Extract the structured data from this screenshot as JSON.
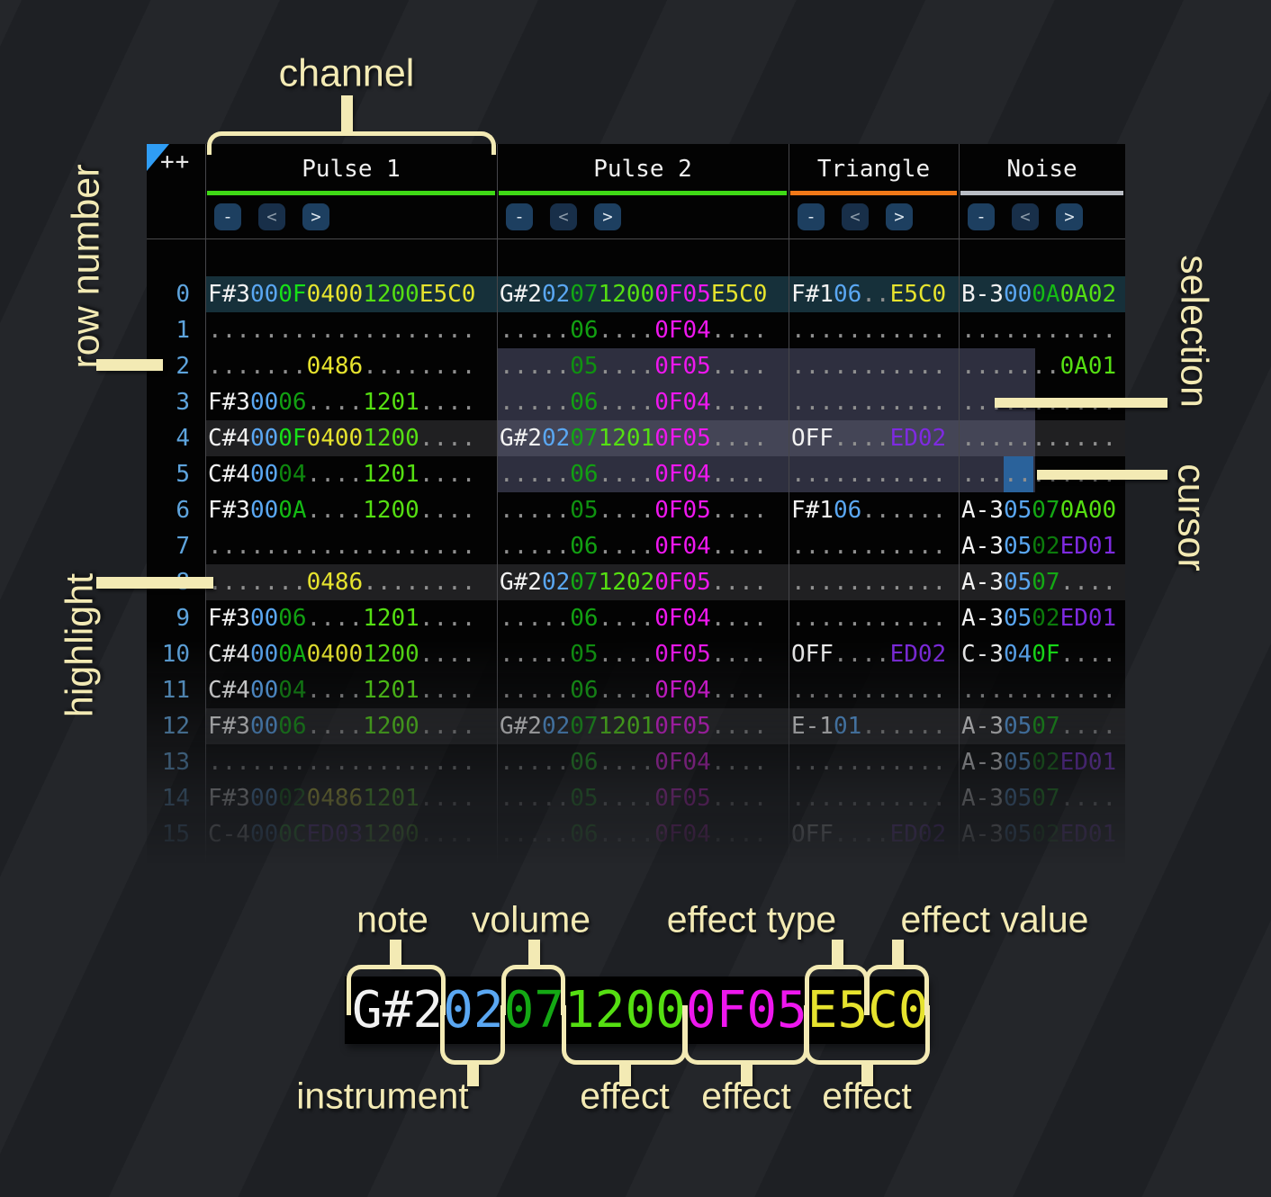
{
  "corner": "++",
  "annotations": {
    "channel": "channel",
    "row_number": "row number",
    "highlight": "highlight",
    "selection": "selection",
    "cursor": "cursor"
  },
  "channel_buttons": {
    "collapse": "-",
    "prev": "<",
    "next": ">"
  },
  "channels": [
    {
      "name": "Pulse 1",
      "underline": "#3fd916"
    },
    {
      "name": "Pulse 2",
      "underline": "#3fd916"
    },
    {
      "name": "Triangle",
      "underline": "#f07818"
    },
    {
      "name": "Noise",
      "underline": "#b9bdc4"
    }
  ],
  "palette": {
    "white": "#f2f2f2",
    "ins": "#5aa7f2",
    "dot": "#8f8f8f",
    "fx_yellow": "#e6e32e",
    "fx_lime": "#55df12",
    "fx_magenta": "#ee17ee",
    "fx_purple": "#7e2ae0",
    "v0F": "#17e017",
    "v0C": "#14cf14",
    "v0A": "#14ba14",
    "v07": "#14a814",
    "v06": "#12a012",
    "v05": "#0f9210",
    "v04": "#0e870e",
    "v02": "#0c7a0c"
  },
  "rows": [
    {
      "num": "0",
      "bg": "first",
      "cells": [
        [
          [
            "F#3",
            "white"
          ],
          [
            "00",
            "ins"
          ],
          [
            "0F",
            "v0F"
          ],
          [
            "0400",
            "fx_yellow"
          ],
          [
            "1200",
            "fx_lime"
          ],
          [
            "E5C0",
            "fx_yellow"
          ]
        ],
        [
          [
            "G#2",
            "white"
          ],
          [
            "02",
            "ins"
          ],
          [
            "07",
            "v07"
          ],
          [
            "1200",
            "fx_lime"
          ],
          [
            "0F05",
            "fx_magenta"
          ],
          [
            "E5C0",
            "fx_yellow"
          ]
        ],
        [
          [
            "F#1",
            "white"
          ],
          [
            "06",
            "ins"
          ],
          [
            "..",
            "dot"
          ],
          [
            "E5C0",
            "fx_yellow"
          ]
        ],
        [
          [
            "B-3",
            "white"
          ],
          [
            "00",
            "ins"
          ],
          [
            "0A",
            "v0A"
          ],
          [
            "0A02",
            "fx_lime"
          ]
        ]
      ]
    },
    {
      "num": "1",
      "bg": null,
      "cells": [
        [
          [
            "...................",
            "dot"
          ]
        ],
        [
          [
            ".....",
            "dot"
          ],
          [
            "06",
            "v06"
          ],
          [
            "....",
            "dot"
          ],
          [
            "0F04",
            "fx_magenta"
          ],
          [
            "....",
            "dot"
          ]
        ],
        [
          [
            "...........",
            "dot"
          ]
        ],
        [
          [
            "...........",
            "dot"
          ]
        ]
      ]
    },
    {
      "num": "2",
      "bg": null,
      "cells": [
        [
          [
            ".......",
            "dot"
          ],
          [
            "0486",
            "fx_yellow"
          ],
          [
            "........",
            "dot"
          ]
        ],
        [
          [
            ".....",
            "dot"
          ],
          [
            "05",
            "v05"
          ],
          [
            "....",
            "dot"
          ],
          [
            "0F05",
            "fx_magenta"
          ],
          [
            "....",
            "dot"
          ]
        ],
        [
          [
            "...........",
            "dot"
          ]
        ],
        [
          [
            ".......",
            "dot"
          ],
          [
            "0A01",
            "fx_lime"
          ]
        ]
      ]
    },
    {
      "num": "3",
      "bg": null,
      "cells": [
        [
          [
            "F#3",
            "white"
          ],
          [
            "00",
            "ins"
          ],
          [
            "06",
            "v06"
          ],
          [
            "....",
            "dot"
          ],
          [
            "1201",
            "fx_lime"
          ],
          [
            "....",
            "dot"
          ]
        ],
        [
          [
            ".....",
            "dot"
          ],
          [
            "06",
            "v06"
          ],
          [
            "....",
            "dot"
          ],
          [
            "0F04",
            "fx_magenta"
          ],
          [
            "....",
            "dot"
          ]
        ],
        [
          [
            "...........",
            "dot"
          ]
        ],
        [
          [
            "...........",
            "dot"
          ]
        ]
      ]
    },
    {
      "num": "4",
      "bg": "quad",
      "cells": [
        [
          [
            "C#4",
            "white"
          ],
          [
            "00",
            "ins"
          ],
          [
            "0F",
            "v0F"
          ],
          [
            "0400",
            "fx_yellow"
          ],
          [
            "1200",
            "fx_lime"
          ],
          [
            "....",
            "dot"
          ]
        ],
        [
          [
            "G#2",
            "white"
          ],
          [
            "02",
            "ins"
          ],
          [
            "07",
            "v07"
          ],
          [
            "1201",
            "fx_lime"
          ],
          [
            "0F05",
            "fx_magenta"
          ],
          [
            "....",
            "dot"
          ]
        ],
        [
          [
            "OFF",
            "white"
          ],
          [
            "....",
            "dot"
          ],
          [
            "ED02",
            "fx_purple"
          ]
        ],
        [
          [
            "...........",
            "dot"
          ]
        ]
      ]
    },
    {
      "num": "5",
      "bg": null,
      "cells": [
        [
          [
            "C#4",
            "white"
          ],
          [
            "00",
            "ins"
          ],
          [
            "04",
            "v04"
          ],
          [
            "....",
            "dot"
          ],
          [
            "1201",
            "fx_lime"
          ],
          [
            "....",
            "dot"
          ]
        ],
        [
          [
            ".....",
            "dot"
          ],
          [
            "06",
            "v06"
          ],
          [
            "....",
            "dot"
          ],
          [
            "0F04",
            "fx_magenta"
          ],
          [
            "....",
            "dot"
          ]
        ],
        [
          [
            "...........",
            "dot"
          ]
        ],
        [
          [
            "...........",
            "dot"
          ]
        ]
      ]
    },
    {
      "num": "6",
      "bg": null,
      "cells": [
        [
          [
            "F#3",
            "white"
          ],
          [
            "00",
            "ins"
          ],
          [
            "0A",
            "v0A"
          ],
          [
            "....",
            "dot"
          ],
          [
            "1200",
            "fx_lime"
          ],
          [
            "....",
            "dot"
          ]
        ],
        [
          [
            ".....",
            "dot"
          ],
          [
            "05",
            "v05"
          ],
          [
            "....",
            "dot"
          ],
          [
            "0F05",
            "fx_magenta"
          ],
          [
            "....",
            "dot"
          ]
        ],
        [
          [
            "F#1",
            "white"
          ],
          [
            "06",
            "ins"
          ],
          [
            "......",
            "dot"
          ]
        ],
        [
          [
            "A-3",
            "white"
          ],
          [
            "05",
            "ins"
          ],
          [
            "07",
            "v07"
          ],
          [
            "0A00",
            "fx_lime"
          ]
        ]
      ]
    },
    {
      "num": "7",
      "bg": null,
      "cells": [
        [
          [
            "...................",
            "dot"
          ]
        ],
        [
          [
            ".....",
            "dot"
          ],
          [
            "06",
            "v06"
          ],
          [
            "....",
            "dot"
          ],
          [
            "0F04",
            "fx_magenta"
          ],
          [
            "....",
            "dot"
          ]
        ],
        [
          [
            "...........",
            "dot"
          ]
        ],
        [
          [
            "A-3",
            "white"
          ],
          [
            "05",
            "ins"
          ],
          [
            "02",
            "v02"
          ],
          [
            "ED01",
            "fx_purple"
          ]
        ]
      ]
    },
    {
      "num": "8",
      "bg": "quad",
      "cells": [
        [
          [
            ".......",
            "dot"
          ],
          [
            "0486",
            "fx_yellow"
          ],
          [
            "........",
            "dot"
          ]
        ],
        [
          [
            "G#2",
            "white"
          ],
          [
            "02",
            "ins"
          ],
          [
            "07",
            "v07"
          ],
          [
            "1202",
            "fx_lime"
          ],
          [
            "0F05",
            "fx_magenta"
          ],
          [
            "....",
            "dot"
          ]
        ],
        [
          [
            "...........",
            "dot"
          ]
        ],
        [
          [
            "A-3",
            "white"
          ],
          [
            "05",
            "ins"
          ],
          [
            "07",
            "v07"
          ],
          [
            "....",
            "dot"
          ]
        ]
      ]
    },
    {
      "num": "9",
      "bg": null,
      "cells": [
        [
          [
            "F#3",
            "white"
          ],
          [
            "00",
            "ins"
          ],
          [
            "06",
            "v06"
          ],
          [
            "....",
            "dot"
          ],
          [
            "1201",
            "fx_lime"
          ],
          [
            "....",
            "dot"
          ]
        ],
        [
          [
            ".....",
            "dot"
          ],
          [
            "06",
            "v06"
          ],
          [
            "....",
            "dot"
          ],
          [
            "0F04",
            "fx_magenta"
          ],
          [
            "....",
            "dot"
          ]
        ],
        [
          [
            "...........",
            "dot"
          ]
        ],
        [
          [
            "A-3",
            "white"
          ],
          [
            "05",
            "ins"
          ],
          [
            "02",
            "v02"
          ],
          [
            "ED01",
            "fx_purple"
          ]
        ]
      ]
    },
    {
      "num": "10",
      "bg": null,
      "cells": [
        [
          [
            "C#4",
            "white"
          ],
          [
            "00",
            "ins"
          ],
          [
            "0A",
            "v0A"
          ],
          [
            "0400",
            "fx_yellow"
          ],
          [
            "1200",
            "fx_lime"
          ],
          [
            "....",
            "dot"
          ]
        ],
        [
          [
            ".....",
            "dot"
          ],
          [
            "05",
            "v05"
          ],
          [
            "....",
            "dot"
          ],
          [
            "0F05",
            "fx_magenta"
          ],
          [
            "....",
            "dot"
          ]
        ],
        [
          [
            "OFF",
            "white"
          ],
          [
            "....",
            "dot"
          ],
          [
            "ED02",
            "fx_purple"
          ]
        ],
        [
          [
            "C-3",
            "white"
          ],
          [
            "04",
            "ins"
          ],
          [
            "0F",
            "v0F"
          ],
          [
            "....",
            "dot"
          ]
        ]
      ]
    },
    {
      "num": "11",
      "bg": null,
      "cells": [
        [
          [
            "C#4",
            "white"
          ],
          [
            "00",
            "ins"
          ],
          [
            "04",
            "v04"
          ],
          [
            "....",
            "dot"
          ],
          [
            "1201",
            "fx_lime"
          ],
          [
            "....",
            "dot"
          ]
        ],
        [
          [
            ".....",
            "dot"
          ],
          [
            "06",
            "v06"
          ],
          [
            "....",
            "dot"
          ],
          [
            "0F04",
            "fx_magenta"
          ],
          [
            "....",
            "dot"
          ]
        ],
        [
          [
            "...........",
            "dot"
          ]
        ],
        [
          [
            "...........",
            "dot"
          ]
        ]
      ]
    },
    {
      "num": "12",
      "bg": "quad",
      "cells": [
        [
          [
            "F#3",
            "white"
          ],
          [
            "00",
            "ins"
          ],
          [
            "06",
            "v06"
          ],
          [
            "....",
            "dot"
          ],
          [
            "1200",
            "fx_lime"
          ],
          [
            "....",
            "dot"
          ]
        ],
        [
          [
            "G#2",
            "white"
          ],
          [
            "02",
            "ins"
          ],
          [
            "07",
            "v07"
          ],
          [
            "1201",
            "fx_lime"
          ],
          [
            "0F05",
            "fx_magenta"
          ],
          [
            "....",
            "dot"
          ]
        ],
        [
          [
            "E-1",
            "white"
          ],
          [
            "01",
            "ins"
          ],
          [
            "......",
            "dot"
          ]
        ],
        [
          [
            "A-3",
            "white"
          ],
          [
            "05",
            "ins"
          ],
          [
            "07",
            "v07"
          ],
          [
            "....",
            "dot"
          ]
        ]
      ]
    },
    {
      "num": "13",
      "bg": null,
      "cells": [
        [
          [
            "...................",
            "dot"
          ]
        ],
        [
          [
            ".....",
            "dot"
          ],
          [
            "06",
            "v06"
          ],
          [
            "....",
            "dot"
          ],
          [
            "0F04",
            "fx_magenta"
          ],
          [
            "....",
            "dot"
          ]
        ],
        [
          [
            "...........",
            "dot"
          ]
        ],
        [
          [
            "A-3",
            "white"
          ],
          [
            "05",
            "ins"
          ],
          [
            "02",
            "v02"
          ],
          [
            "ED01",
            "fx_purple"
          ]
        ]
      ]
    },
    {
      "num": "14",
      "bg": null,
      "cells": [
        [
          [
            "F#3",
            "white"
          ],
          [
            "00",
            "ins"
          ],
          [
            "02",
            "v02"
          ],
          [
            "0486",
            "fx_yellow"
          ],
          [
            "1201",
            "fx_lime"
          ],
          [
            "....",
            "dot"
          ]
        ],
        [
          [
            ".....",
            "dot"
          ],
          [
            "05",
            "v05"
          ],
          [
            "....",
            "dot"
          ],
          [
            "0F05",
            "fx_magenta"
          ],
          [
            "....",
            "dot"
          ]
        ],
        [
          [
            "...........",
            "dot"
          ]
        ],
        [
          [
            "A-3",
            "white"
          ],
          [
            "05",
            "ins"
          ],
          [
            "07",
            "v07"
          ],
          [
            "....",
            "dot"
          ]
        ]
      ]
    },
    {
      "num": "15",
      "bg": null,
      "cells": [
        [
          [
            "C-4",
            "white"
          ],
          [
            "00",
            "ins"
          ],
          [
            "0C",
            "v0C"
          ],
          [
            "ED03",
            "fx_purple"
          ],
          [
            "1200",
            "fx_lime"
          ],
          [
            "....",
            "dot"
          ]
        ],
        [
          [
            ".....",
            "dot"
          ],
          [
            "06",
            "v06"
          ],
          [
            "....",
            "dot"
          ],
          [
            "0F04",
            "fx_magenta"
          ],
          [
            "....",
            "dot"
          ]
        ],
        [
          [
            "OFF",
            "white"
          ],
          [
            "....",
            "dot"
          ],
          [
            "ED02",
            "fx_purple"
          ]
        ],
        [
          [
            "A-3",
            "white"
          ],
          [
            "05",
            "ins"
          ],
          [
            "02",
            "v02"
          ],
          [
            "ED01",
            "fx_purple"
          ]
        ]
      ]
    }
  ],
  "legend": {
    "segments": [
      [
        "G#2",
        "white"
      ],
      [
        "02",
        "ins"
      ],
      [
        "07",
        "v07"
      ],
      [
        "1200",
        "fx_lime"
      ],
      [
        "0F05",
        "fx_magenta"
      ],
      [
        "E5C0",
        "fx_yellow"
      ]
    ],
    "labels_top": [
      "note",
      "volume",
      "effect type",
      "effect value"
    ],
    "labels_bottom": [
      "instrument",
      "effect",
      "effect",
      "effect"
    ]
  }
}
